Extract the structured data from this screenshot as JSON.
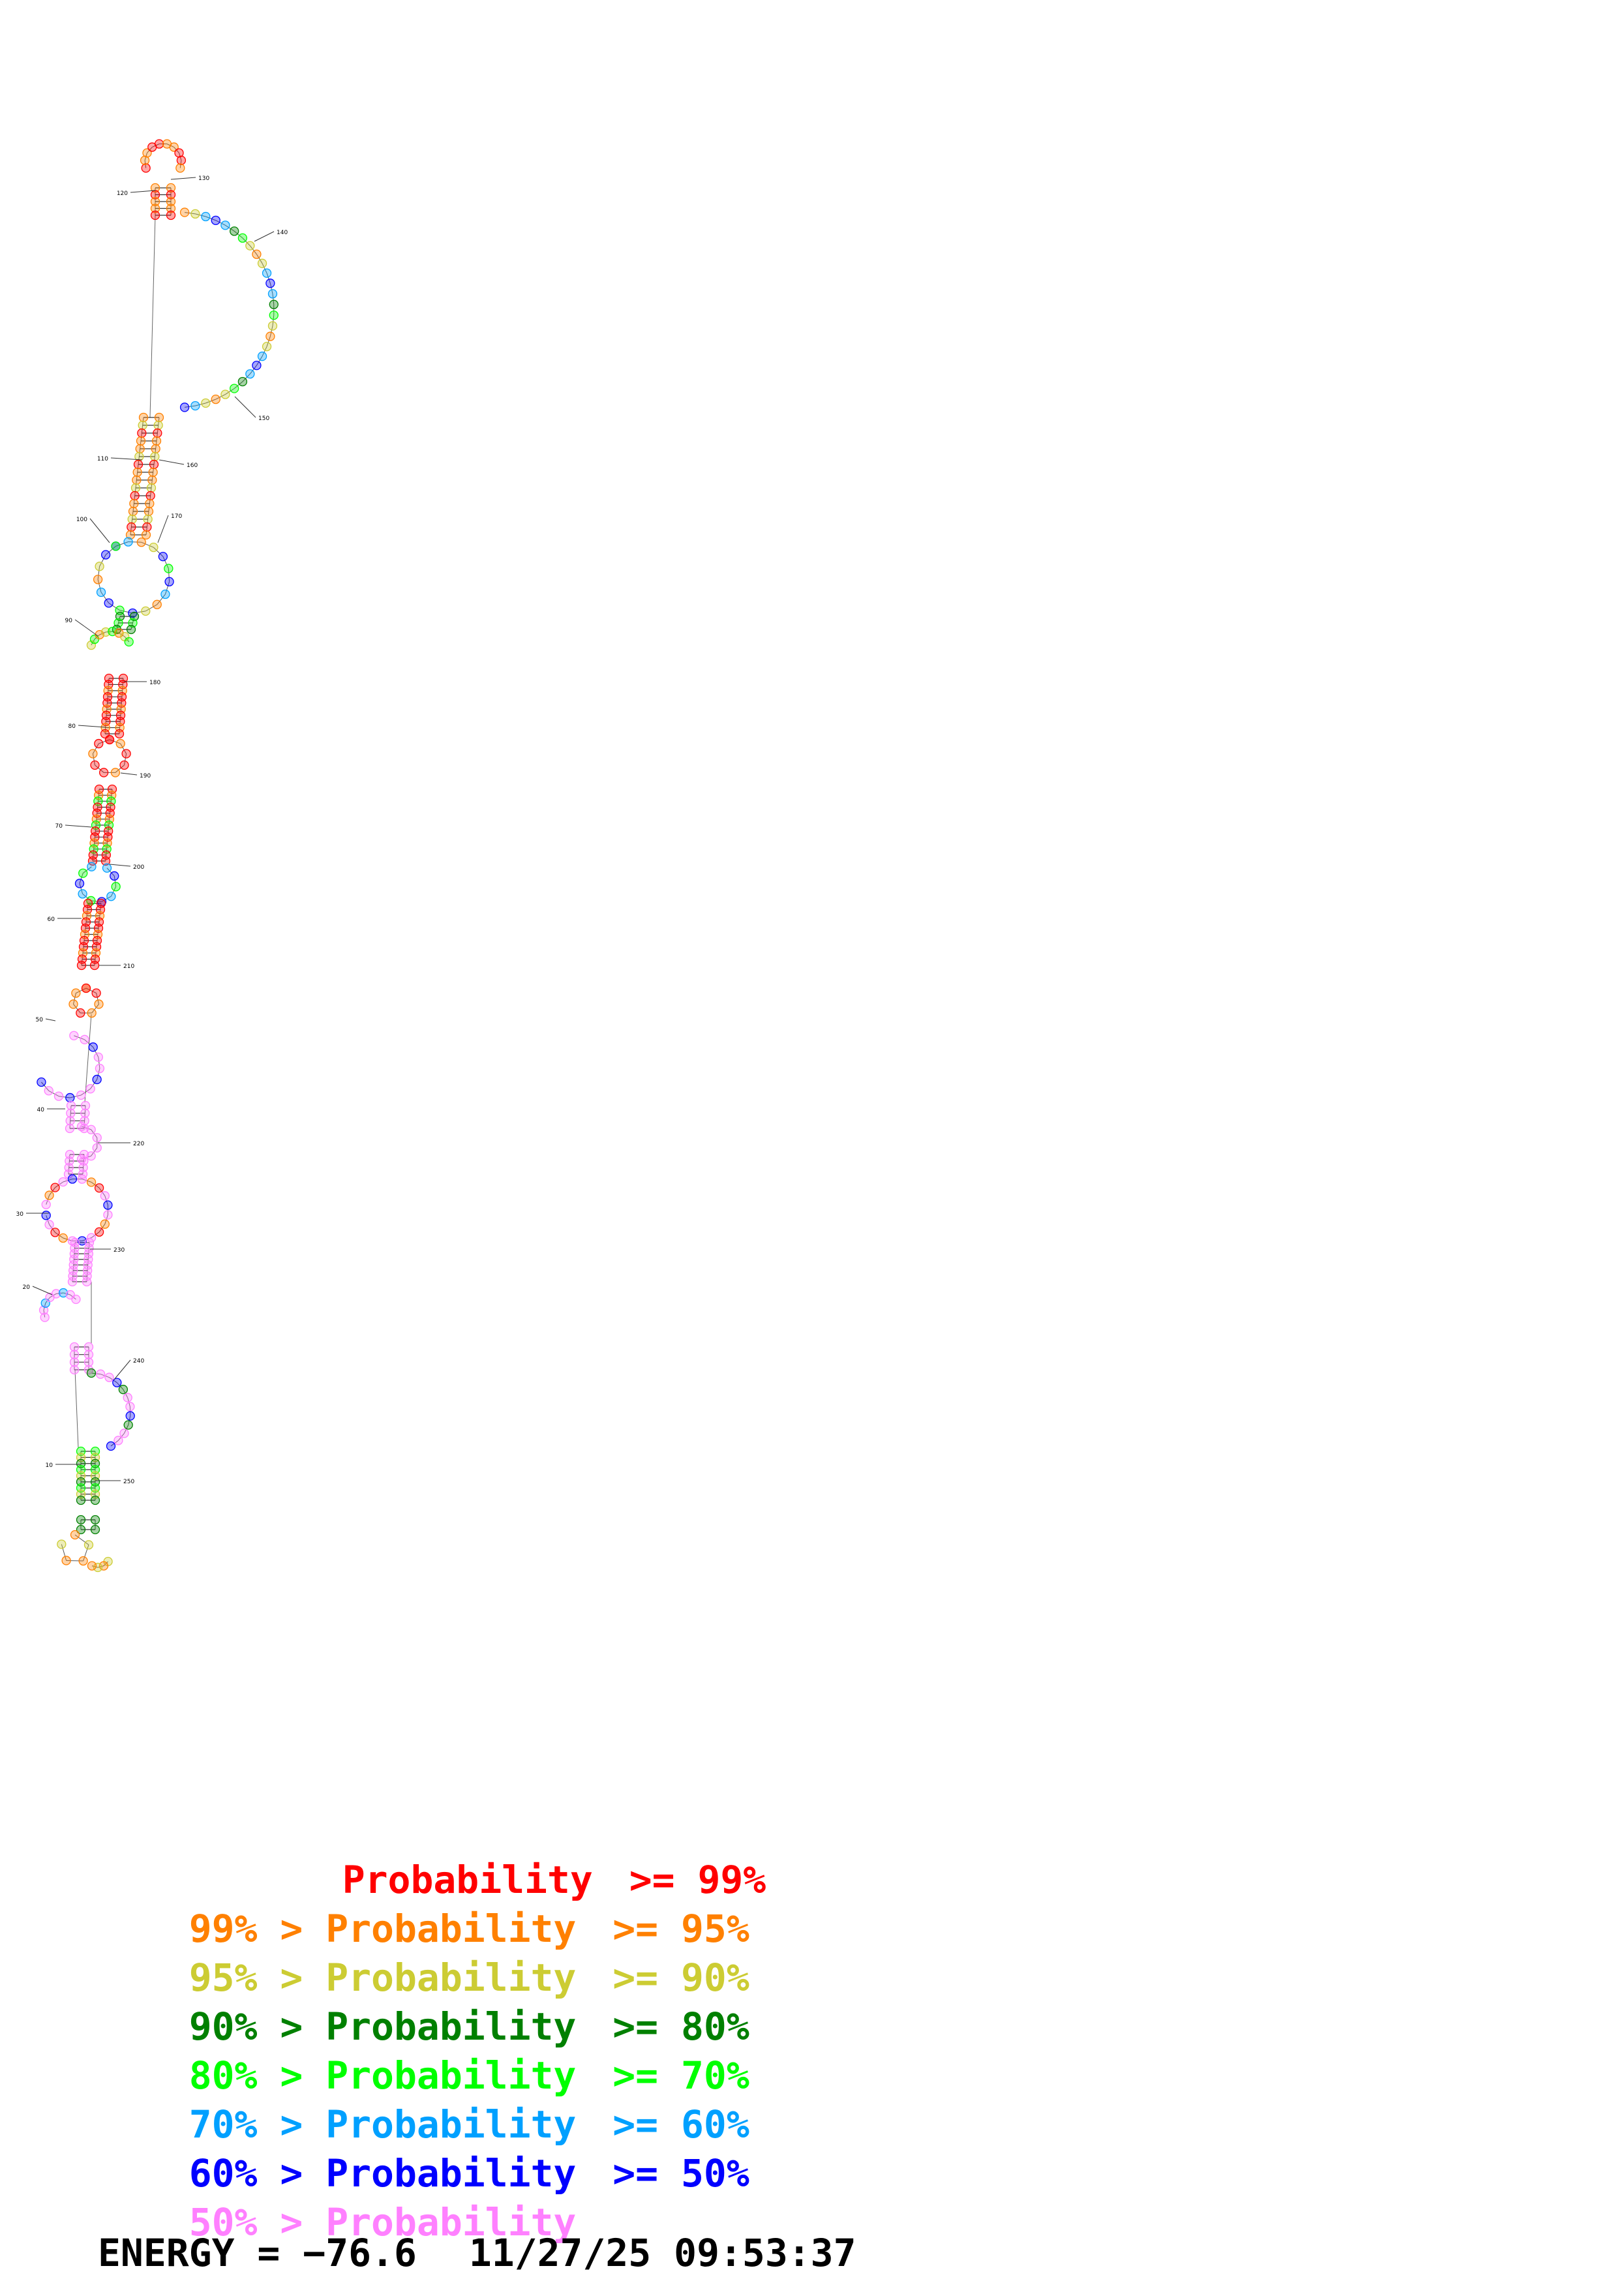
{
  "structure": {
    "label_positions": [
      "10",
      "20",
      "30",
      "40",
      "50",
      "60",
      "70",
      "80",
      "90",
      "100",
      "110",
      "120",
      "130",
      "140",
      "150",
      "160",
      "170",
      "180",
      "190",
      "200",
      "210",
      "220",
      "230",
      "240",
      "250"
    ]
  },
  "legend": [
    {
      "left": "",
      "gt": "",
      "label": "Probability",
      "cmp": ">=",
      "right": "99%",
      "color": "#ff0000"
    },
    {
      "left": "99%",
      "gt": ">",
      "label": "Probability",
      "cmp": ">=",
      "right": "95%",
      "color": "#ff8000"
    },
    {
      "left": "95%",
      "gt": ">",
      "label": "Probability",
      "cmp": ">=",
      "right": "90%",
      "color": "#cccc33"
    },
    {
      "left": "90%",
      "gt": ">",
      "label": "Probability",
      "cmp": ">=",
      "right": "80%",
      "color": "#008000"
    },
    {
      "left": "80%",
      "gt": ">",
      "label": "Probability",
      "cmp": ">=",
      "right": "70%",
      "color": "#00ff00"
    },
    {
      "left": "70%",
      "gt": ">",
      "label": "Probability",
      "cmp": ">=",
      "right": "60%",
      "color": "#00a0ff"
    },
    {
      "left": "60%",
      "gt": ">",
      "label": "Probability",
      "cmp": ">=",
      "right": "50%",
      "color": "#0000ff"
    },
    {
      "left": "50%",
      "gt": ">",
      "label": "Probability",
      "cmp": "",
      "right": "",
      "color": "#ff80ff"
    }
  ],
  "energy": {
    "label": "ENERGY = −76.6",
    "date": "11/27/25",
    "time": "09:53:37"
  }
}
